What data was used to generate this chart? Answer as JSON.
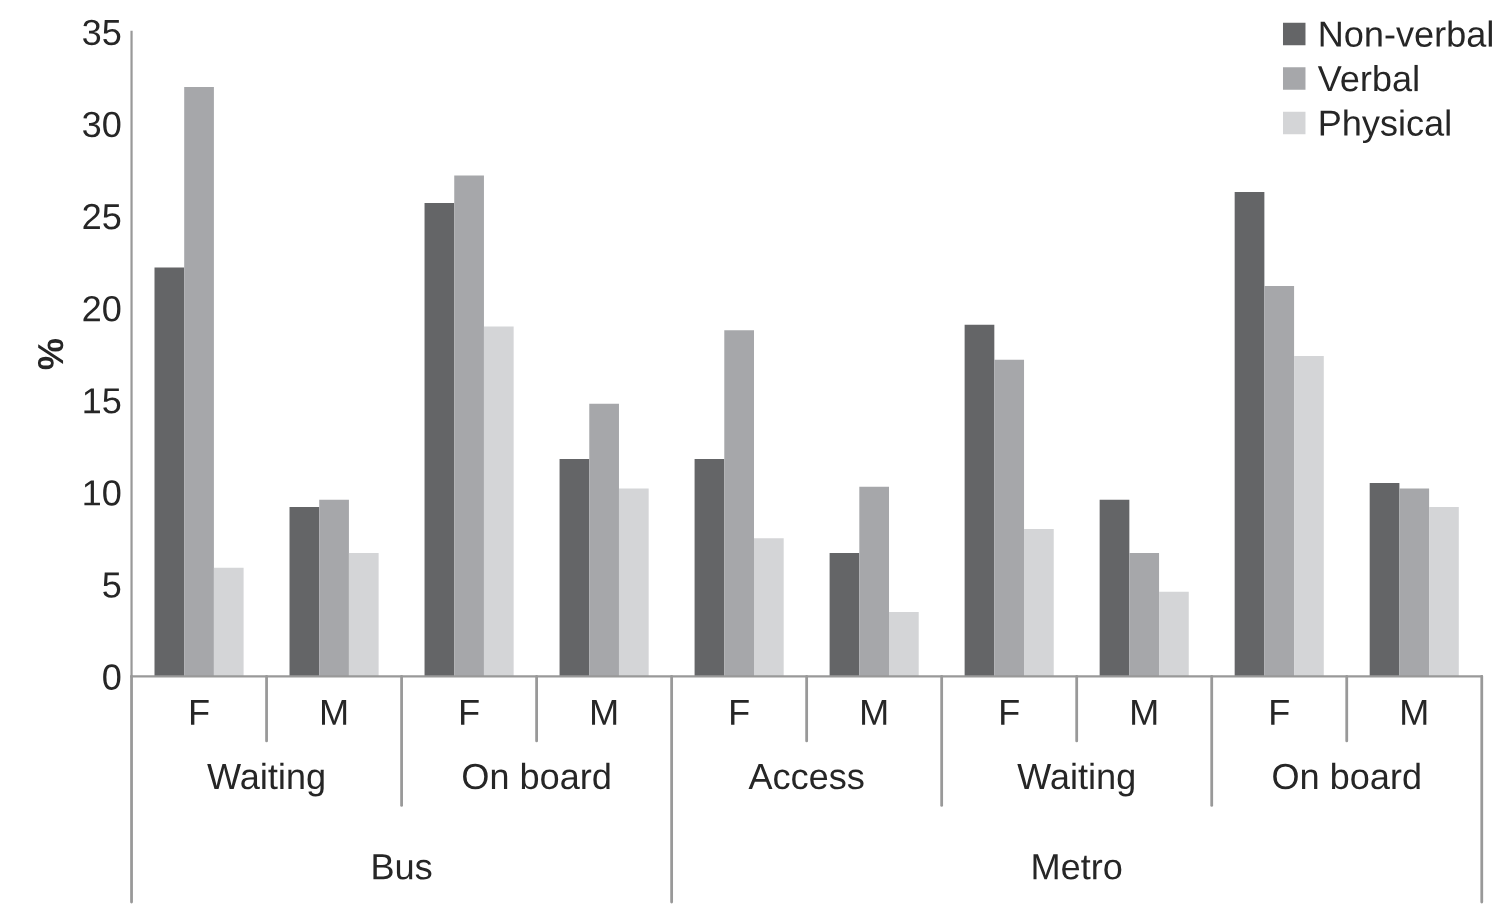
{
  "chart_data": {
    "type": "bar",
    "ylabel": "%",
    "categories": [
      "F",
      "M",
      "F",
      "M",
      "F",
      "M",
      "F",
      "M",
      "F",
      "M"
    ],
    "series": [
      {
        "name": "Non-verbal",
        "color": "#646567",
        "values": [
          22.2,
          9.2,
          25.7,
          11.8,
          11.8,
          6.7,
          19.1,
          9.6,
          26.3,
          10.5
        ]
      },
      {
        "name": "Verbal",
        "color": "#a6a7aa",
        "values": [
          32.0,
          9.6,
          27.2,
          14.8,
          18.8,
          10.3,
          17.2,
          6.7,
          21.2,
          10.2
        ]
      },
      {
        "name": "Physical",
        "color": "#d4d5d7",
        "values": [
          5.9,
          6.7,
          19.0,
          10.2,
          7.5,
          3.5,
          8.0,
          4.6,
          17.4,
          9.2
        ]
      }
    ],
    "ylim": [
      0,
      35
    ],
    "yticks": [
      0,
      5,
      10,
      15,
      20,
      25,
      30,
      35
    ],
    "grid": false,
    "legend": "top right",
    "annotations": [
      "Waiting",
      "On board",
      "Access",
      "Waiting",
      "On board",
      "Bus",
      "Metro"
    ]
  }
}
